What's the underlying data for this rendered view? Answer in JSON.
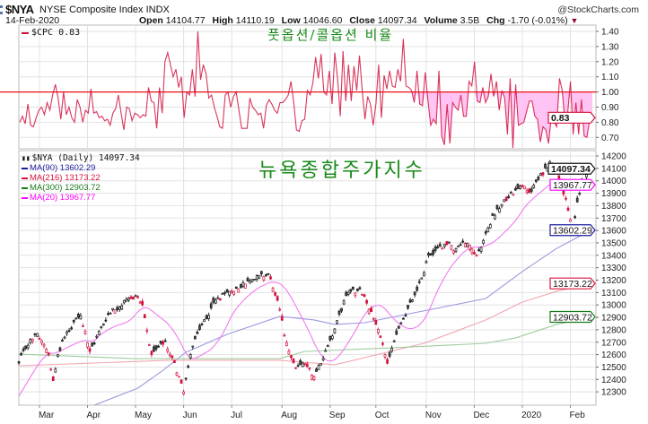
{
  "header": {
    "symbol": "$NYA",
    "name": "NYSE Composite Index INDX",
    "date": "14-Feb-2020",
    "brand": "@StockCharts.com",
    "open_label": "Open",
    "open": "14104.77",
    "high_label": "High",
    "high": "14110.19",
    "low_label": "Low",
    "low": "14046.60",
    "close_label": "Close",
    "close": "14097.34",
    "volume_label": "Volume",
    "volume": "3.5B",
    "chg_label": "Chg",
    "chg": "-1.70 (-0.01%)"
  },
  "annotations": {
    "top": "풋옵션/콜옵션 비율",
    "main": "뉴욕종합주가지수"
  },
  "colors": {
    "up": "#111111",
    "down": "#d2123e",
    "cpc": "#d2123e",
    "ref_line": "#ee1111",
    "fill": "#ffc4f4",
    "ma90": "#1c1ca0",
    "ma216": "#dc143c",
    "ma300": "#1a7a1a",
    "ma20": "#ff00ff",
    "ma90_line": "#9a9ae0",
    "ma216_line": "#f2a6b0",
    "ma300_line": "#9fcc9f",
    "ma20_line": "#f07af0",
    "grid": "#e2e2e2"
  },
  "chart_data": [
    {
      "type": "line",
      "title": "$CPC",
      "legend": "$CPC 0.83",
      "last_value": "0.83",
      "ylim": [
        0.62,
        1.44
      ],
      "yticks": [
        "0.70",
        "0.80",
        "0.90",
        "1.00",
        "1.10",
        "1.20",
        "1.30",
        "1.40"
      ],
      "reference_line": 1.0,
      "fill_below_reference_from_fraction": 0.68,
      "values": [
        0.8,
        0.84,
        0.79,
        0.92,
        0.78,
        0.77,
        0.83,
        0.88,
        0.9,
        0.85,
        0.93,
        0.88,
        0.98,
        1.05,
        0.96,
        0.82,
        1.0,
        0.85,
        0.9,
        0.83,
        0.8,
        0.95,
        0.9,
        0.8,
        0.88,
        0.86,
        1.02,
        0.86,
        0.87,
        0.83,
        0.84,
        0.81,
        0.82,
        0.78,
        0.86,
        0.89,
        0.98,
        0.86,
        0.75,
        0.9,
        0.89,
        0.81,
        0.86,
        0.85,
        0.83,
        0.85,
        0.84,
        1.03,
        0.94,
        0.93,
        0.76,
        1.03,
        0.86,
        1.2,
        1.26,
        1.18,
        1.1,
        1.15,
        1.03,
        1.1,
        0.83,
        1.0,
        0.98,
        1.15,
        0.97,
        1.4,
        1.08,
        1.18,
        1.12,
        0.96,
        0.98,
        0.9,
        0.84,
        0.77,
        0.76,
        0.98,
        1.0,
        0.9,
        0.97,
        1.0,
        0.88,
        0.76,
        0.76,
        0.76,
        0.96,
        0.9,
        0.88,
        0.85,
        0.86,
        0.76,
        0.91,
        0.95,
        0.92,
        0.88,
        0.86,
        0.93,
        0.93,
        0.95,
        0.98,
        1.07,
        0.93,
        0.75,
        0.74,
        0.81,
        0.82,
        1.01,
        0.98,
        1.06,
        1.23,
        1.09,
        1.25,
        1.0,
        0.98,
        1.14,
        0.92,
        1.26,
        1.09,
        0.84,
        1.27,
        0.94,
        1.18,
        0.94,
        1.17,
        1.01,
        1.24,
        1.01,
        0.82,
        0.97,
        0.92,
        0.78,
        0.92,
        1.18,
        0.83,
        1.11,
        1.02,
        1.14,
        1.04,
        1.03,
        1.15,
        1.07,
        1.35,
        1.04,
        1.03,
        1.01,
        0.93,
        1.14,
        0.92,
        0.91,
        1.13,
        0.94,
        0.78,
        0.82,
        0.79,
        1.14,
        0.71,
        0.65,
        0.92,
        0.66,
        0.93,
        0.9,
        0.88,
        0.98,
        0.84,
        0.84,
        1.07,
        1.04,
        1.2,
        0.94,
        0.93,
        1.03,
        0.93,
        0.97,
        1.12,
        0.97,
        1.07,
        0.88,
        1.01,
        0.96,
        0.72,
        1.09,
        0.63,
        1.05,
        0.78,
        0.79,
        0.8,
        0.87,
        0.94,
        0.94,
        0.84,
        0.82,
        0.67,
        0.77,
        0.75,
        0.66,
        0.83,
        0.8,
        0.77,
        1.09,
        1.01,
        0.8,
        0.86,
        1.07,
        0.72,
        0.93,
        0.72,
        0.95,
        0.71,
        0.7,
        0.81,
        0.83
      ]
    },
    {
      "type": "candlestick",
      "title": "$NYA (Daily)",
      "legend": "$NYA (Daily) 14097.34",
      "ylim": [
        12190,
        14240
      ],
      "yticks": [
        "12300",
        "12400",
        "12500",
        "12600",
        "12700",
        "12800",
        "12900",
        "13000",
        "13100",
        "13200",
        "13300",
        "13400",
        "13500",
        "13600",
        "13700",
        "13800",
        "13900",
        "14000",
        "14100",
        "14200"
      ],
      "trading_days": 251,
      "x_labels": [
        {
          "label": "Mar",
          "index": 9
        },
        {
          "label": "Apr",
          "index": 30
        },
        {
          "label": "May",
          "index": 51
        },
        {
          "label": "Jun",
          "index": 72
        },
        {
          "label": "Jul",
          "index": 93
        },
        {
          "label": "Aug",
          "index": 115
        },
        {
          "label": "Sep",
          "index": 136
        },
        {
          "label": "Oct",
          "index": 156
        },
        {
          "label": "Nov",
          "index": 178
        },
        {
          "label": "Dec",
          "index": 199
        },
        {
          "label": "2020",
          "index": 220
        },
        {
          "label": "Feb",
          "index": 241
        }
      ],
      "close_keypoints": [
        [
          0,
          12532
        ],
        [
          3.5,
          12677
        ],
        [
          8,
          12770
        ],
        [
          13,
          12600
        ],
        [
          15,
          12390
        ],
        [
          17,
          12600
        ],
        [
          21,
          12785
        ],
        [
          27,
          12915
        ],
        [
          31,
          12626
        ],
        [
          39,
          12930
        ],
        [
          51,
          13075
        ],
        [
          54,
          13000
        ],
        [
          58,
          12600
        ],
        [
          64,
          12710
        ],
        [
          70,
          12425
        ],
        [
          72,
          12300
        ],
        [
          75,
          12600
        ],
        [
          78,
          12770
        ],
        [
          86,
          13040
        ],
        [
          93,
          13110
        ],
        [
          102,
          13205
        ],
        [
          109,
          13250
        ],
        [
          114,
          12965
        ],
        [
          116,
          12750
        ],
        [
          121,
          12495
        ],
        [
          125,
          12530
        ],
        [
          129,
          12424
        ],
        [
          133,
          12570
        ],
        [
          137,
          12750
        ],
        [
          143,
          13075
        ],
        [
          149,
          13130
        ],
        [
          153,
          12965
        ],
        [
          156,
          12843
        ],
        [
          160,
          12600
        ],
        [
          161,
          12530
        ],
        [
          164,
          12710
        ],
        [
          168,
          12890
        ],
        [
          172,
          13040
        ],
        [
          176,
          13218
        ],
        [
          179,
          13400
        ],
        [
          184,
          13470
        ],
        [
          188,
          13507
        ],
        [
          190,
          13435
        ],
        [
          194,
          13507
        ],
        [
          198,
          13450
        ],
        [
          200,
          13400
        ],
        [
          203,
          13520
        ],
        [
          207,
          13720
        ],
        [
          211,
          13810
        ],
        [
          217,
          13925
        ],
        [
          220,
          13955
        ],
        [
          223,
          13905
        ],
        [
          227,
          14010
        ],
        [
          232,
          14155
        ],
        [
          235,
          14085
        ],
        [
          237,
          13975
        ],
        [
          240,
          13760
        ],
        [
          242,
          13615
        ],
        [
          244,
          13830
        ],
        [
          246,
          13975
        ],
        [
          249,
          14070
        ],
        [
          250,
          14097.34
        ]
      ],
      "moving_averages": [
        {
          "name": "MA(90)",
          "value": "13602.29",
          "legend": "MA(90) 13602.29",
          "color_key": "ma90",
          "points": [
            [
              32,
              12186
            ],
            [
              52,
              12330
            ],
            [
              63,
              12474
            ],
            [
              73,
              12619
            ],
            [
              91,
              12763
            ],
            [
              114,
              12908
            ],
            [
              129,
              12879
            ],
            [
              138,
              12843
            ],
            [
              151,
              12857
            ],
            [
              204,
              13052
            ],
            [
              220,
              13269
            ],
            [
              235,
              13456
            ],
            [
              250,
              13602.29
            ]
          ]
        },
        {
          "name": "MA(216)",
          "value": "13173.22",
          "legend": "MA(216) 13173.22",
          "color_key": "ma216",
          "points": [
            [
              0,
              12510
            ],
            [
              65,
              12554
            ],
            [
              114,
              12554
            ],
            [
              138,
              12518
            ],
            [
              177,
              12691
            ],
            [
              204,
              12879
            ],
            [
              220,
              13023
            ],
            [
              235,
              13110
            ],
            [
              250,
              13173.22
            ]
          ]
        },
        {
          "name": "MA(300)",
          "value": "12903.72",
          "legend": "MA(300) 12903.72",
          "color_key": "ma300",
          "points": [
            [
              0,
              12604
            ],
            [
              50,
              12568
            ],
            [
              114,
              12568
            ],
            [
              125,
              12626
            ],
            [
              164,
              12655
            ],
            [
              204,
              12691
            ],
            [
              217,
              12734
            ],
            [
              235,
              12843
            ],
            [
              250,
              12903.72
            ]
          ]
        },
        {
          "name": "MA(20)",
          "value": "13967.77",
          "legend": "MA(20) 13967.77",
          "color_key": "ma20",
          "computed_period": 20
        }
      ]
    }
  ]
}
